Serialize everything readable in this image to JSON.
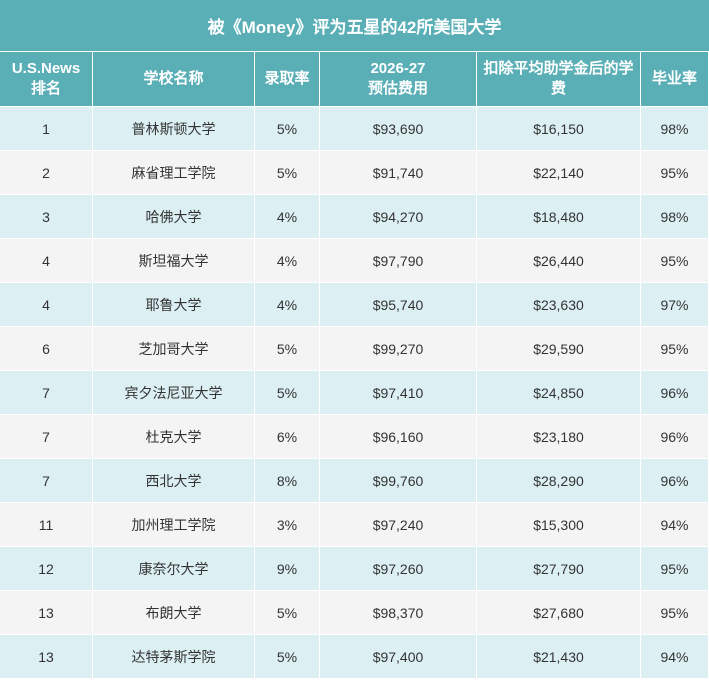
{
  "header": {
    "title": "被《Money》评为五星的42所美国大学"
  },
  "table": {
    "columns": [
      [
        "U.S.News",
        "排名"
      ],
      [
        "学校名称"
      ],
      [
        "录取率"
      ],
      [
        "2026-27",
        "预估费用"
      ],
      [
        "扣除平均助学金后的学费"
      ],
      [
        "毕业率"
      ]
    ],
    "rows": [
      [
        "1",
        "普林斯顿大学",
        "5%",
        "$93,690",
        "$16,150",
        "98%"
      ],
      [
        "2",
        "麻省理工学院",
        "5%",
        "$91,740",
        "$22,140",
        "95%"
      ],
      [
        "3",
        "哈佛大学",
        "4%",
        "$94,270",
        "$18,480",
        "98%"
      ],
      [
        "4",
        "斯坦福大学",
        "4%",
        "$97,790",
        "$26,440",
        "95%"
      ],
      [
        "4",
        "耶鲁大学",
        "4%",
        "$95,740",
        "$23,630",
        "97%"
      ],
      [
        "6",
        "芝加哥大学",
        "5%",
        "$99,270",
        "$29,590",
        "95%"
      ],
      [
        "7",
        "宾夕法尼亚大学",
        "5%",
        "$97,410",
        "$24,850",
        "96%"
      ],
      [
        "7",
        "杜克大学",
        "6%",
        "$96,160",
        "$23,180",
        "96%"
      ],
      [
        "7",
        "西北大学",
        "8%",
        "$99,760",
        "$28,290",
        "96%"
      ],
      [
        "11",
        "加州理工学院",
        "3%",
        "$97,240",
        "$15,300",
        "94%"
      ],
      [
        "12",
        "康奈尔大学",
        "9%",
        "$97,260",
        "$27,790",
        "95%"
      ],
      [
        "13",
        "布朗大学",
        "5%",
        "$98,370",
        "$27,680",
        "95%"
      ],
      [
        "13",
        "达特茅斯学院",
        "5%",
        "$97,400",
        "$21,430",
        "94%"
      ]
    ]
  }
}
